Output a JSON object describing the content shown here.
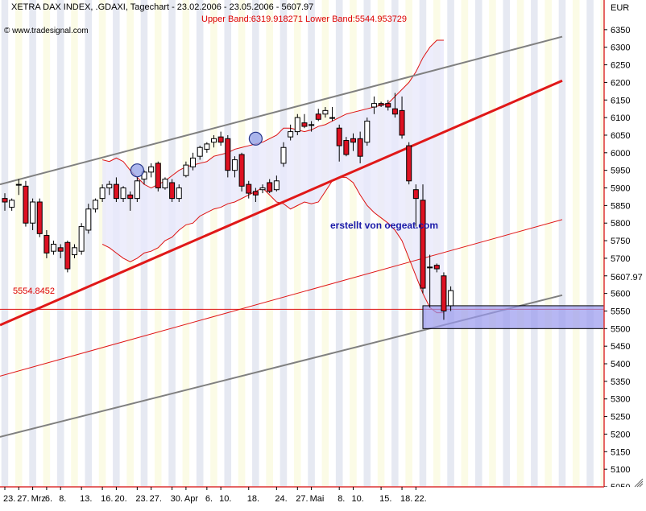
{
  "header": {
    "title": "XETRA DAX INDEX, .GDAXI, Tagechart - 23.02.2006 - 23.05.2006 - 5607.97",
    "bands": "Upper Band:6319.918271 Lower Band:5544.953729",
    "watermark": "© www.tradesignal.com",
    "annotation": "erstellt von oegeat.com",
    "currency": "EUR",
    "support_label": "5554.8452",
    "last_price_label": "5607.97"
  },
  "colors": {
    "up_candle": "#ffffff",
    "down_candle": "#dd1122",
    "trend_main": "#e01818",
    "trend_channel": "#808080",
    "bands": "#dd1111",
    "annotation": "#1a1aa8",
    "support_box": "#9999ee"
  },
  "icons": [
    "circle-marker-icon",
    "resize-grip-icon"
  ],
  "chart_data": {
    "type": "candlestick",
    "title": "XETRA DAX INDEX, .GDAXI, Tagechart - 23.02.2006 - 23.05.2006 - 5607.97",
    "ylabel": "EUR",
    "ylim": [
      5050,
      6400
    ],
    "yticks": [
      5050,
      5100,
      5150,
      5200,
      5250,
      5300,
      5350,
      5400,
      5450,
      5500,
      5550,
      5600,
      5650,
      5700,
      5750,
      5800,
      5850,
      5900,
      5950,
      6000,
      6050,
      6100,
      6150,
      6200,
      6250,
      6300,
      6350
    ],
    "x_tick_labels": [
      "23.",
      "27.",
      "Mrz",
      "6.",
      "8.",
      "13.",
      "16.",
      "20.",
      "23.",
      "27.",
      "30.",
      "Apr",
      "6.",
      "10.",
      "18.",
      "24.",
      "27.",
      "Mai",
      "8.",
      "10.",
      "15.",
      "18.",
      "22."
    ],
    "x_tick_index": [
      0,
      2,
      4,
      6,
      8,
      11,
      14,
      16,
      19,
      21,
      24,
      26,
      29,
      31,
      35,
      39,
      42,
      44,
      48,
      50,
      54,
      57,
      59
    ],
    "candles": [
      {
        "o": 5870,
        "h": 5885,
        "l": 5835,
        "c": 5860
      },
      {
        "o": 5845,
        "h": 5870,
        "l": 5835,
        "c": 5865
      },
      {
        "o": 5910,
        "h": 5925,
        "l": 5880,
        "c": 5910
      },
      {
        "o": 5905,
        "h": 5920,
        "l": 5790,
        "c": 5800
      },
      {
        "o": 5800,
        "h": 5870,
        "l": 5780,
        "c": 5860
      },
      {
        "o": 5860,
        "h": 5870,
        "l": 5760,
        "c": 5770
      },
      {
        "o": 5765,
        "h": 5780,
        "l": 5700,
        "c": 5715
      },
      {
        "o": 5720,
        "h": 5750,
        "l": 5710,
        "c": 5740
      },
      {
        "o": 5730,
        "h": 5740,
        "l": 5700,
        "c": 5720
      },
      {
        "o": 5745,
        "h": 5750,
        "l": 5660,
        "c": 5670
      },
      {
        "o": 5710,
        "h": 5740,
        "l": 5700,
        "c": 5730
      },
      {
        "o": 5720,
        "h": 5800,
        "l": 5710,
        "c": 5790
      },
      {
        "o": 5780,
        "h": 5855,
        "l": 5770,
        "c": 5840
      },
      {
        "o": 5840,
        "h": 5870,
        "l": 5830,
        "c": 5865
      },
      {
        "o": 5870,
        "h": 5910,
        "l": 5860,
        "c": 5900
      },
      {
        "o": 5900,
        "h": 5920,
        "l": 5880,
        "c": 5910
      },
      {
        "o": 5910,
        "h": 5930,
        "l": 5860,
        "c": 5870
      },
      {
        "o": 5870,
        "h": 5905,
        "l": 5860,
        "c": 5900
      },
      {
        "o": 5880,
        "h": 5890,
        "l": 5835,
        "c": 5870
      },
      {
        "o": 5870,
        "h": 5930,
        "l": 5860,
        "c": 5920
      },
      {
        "o": 5925,
        "h": 5950,
        "l": 5910,
        "c": 5945
      },
      {
        "o": 5945,
        "h": 5970,
        "l": 5930,
        "c": 5960
      },
      {
        "o": 5970,
        "h": 5975,
        "l": 5890,
        "c": 5900
      },
      {
        "o": 5900,
        "h": 5930,
        "l": 5895,
        "c": 5925
      },
      {
        "o": 5915,
        "h": 5925,
        "l": 5860,
        "c": 5870
      },
      {
        "o": 5870,
        "h": 5910,
        "l": 5860,
        "c": 5900
      },
      {
        "o": 5935,
        "h": 5975,
        "l": 5930,
        "c": 5965
      },
      {
        "o": 5960,
        "h": 6000,
        "l": 5950,
        "c": 5985
      },
      {
        "o": 5990,
        "h": 6020,
        "l": 5980,
        "c": 6015
      },
      {
        "o": 6010,
        "h": 6030,
        "l": 6000,
        "c": 6025
      },
      {
        "o": 6030,
        "h": 6050,
        "l": 6015,
        "c": 6040
      },
      {
        "o": 6045,
        "h": 6060,
        "l": 6020,
        "c": 6030
      },
      {
        "o": 6040,
        "h": 6050,
        "l": 5930,
        "c": 5950
      },
      {
        "o": 5950,
        "h": 5990,
        "l": 5930,
        "c": 5980
      },
      {
        "o": 5995,
        "h": 6000,
        "l": 5890,
        "c": 5905
      },
      {
        "o": 5910,
        "h": 5920,
        "l": 5870,
        "c": 5885
      },
      {
        "o": 5890,
        "h": 5900,
        "l": 5860,
        "c": 5880
      },
      {
        "o": 5895,
        "h": 5910,
        "l": 5885,
        "c": 5900
      },
      {
        "o": 5915,
        "h": 5925,
        "l": 5885,
        "c": 5890
      },
      {
        "o": 5895,
        "h": 5935,
        "l": 5890,
        "c": 5920
      },
      {
        "o": 5970,
        "h": 6030,
        "l": 5960,
        "c": 6015
      },
      {
        "o": 6045,
        "h": 6080,
        "l": 6035,
        "c": 6060
      },
      {
        "o": 6060,
        "h": 6110,
        "l": 6050,
        "c": 6100
      },
      {
        "o": 6085,
        "h": 6110,
        "l": 6070,
        "c": 6075
      },
      {
        "o": 6080,
        "h": 6090,
        "l": 6060,
        "c": 6080
      },
      {
        "o": 6110,
        "h": 6125,
        "l": 6090,
        "c": 6095
      },
      {
        "o": 6110,
        "h": 6130,
        "l": 6100,
        "c": 6120
      },
      {
        "o": 6100,
        "h": 6130,
        "l": 6090,
        "c": 6100
      },
      {
        "o": 6070,
        "h": 6080,
        "l": 5975,
        "c": 6020
      },
      {
        "o": 6035,
        "h": 6045,
        "l": 5990,
        "c": 5995
      },
      {
        "o": 6040,
        "h": 6055,
        "l": 6005,
        "c": 6030
      },
      {
        "o": 6040,
        "h": 6060,
        "l": 5970,
        "c": 5990
      },
      {
        "o": 6030,
        "h": 6100,
        "l": 6020,
        "c": 6090
      },
      {
        "o": 6130,
        "h": 6160,
        "l": 6110,
        "c": 6140
      },
      {
        "o": 6140,
        "h": 6145,
        "l": 6130,
        "c": 6135
      },
      {
        "o": 6140,
        "h": 6150,
        "l": 6120,
        "c": 6130
      },
      {
        "o": 6125,
        "h": 6170,
        "l": 6100,
        "c": 6110
      },
      {
        "o": 6120,
        "h": 6160,
        "l": 6040,
        "c": 6050
      },
      {
        "o": 6020,
        "h": 6030,
        "l": 5910,
        "c": 5920
      },
      {
        "o": 5895,
        "h": 5910,
        "l": 5790,
        "c": 5870
      },
      {
        "o": 5865,
        "h": 5910,
        "l": 5600,
        "c": 5615
      },
      {
        "o": 5675,
        "h": 5710,
        "l": 5560,
        "c": 5675
      },
      {
        "o": 5680,
        "h": 5685,
        "l": 5660,
        "c": 5670
      },
      {
        "o": 5650,
        "h": 5660,
        "l": 5525,
        "c": 5550
      },
      {
        "o": 5565,
        "h": 5620,
        "l": 5550,
        "c": 5608
      }
    ],
    "trendlines": [
      {
        "name": "upper-channel",
        "x": [
          0,
          80
        ],
        "y": [
          5910,
          6330
        ]
      },
      {
        "name": "main-uptrend",
        "x": [
          0,
          80
        ],
        "y": [
          5510,
          6205
        ]
      },
      {
        "name": "mid-trend",
        "x": [
          0,
          80
        ],
        "y": [
          5365,
          5810
        ]
      },
      {
        "name": "lower-channel",
        "x": [
          0,
          80
        ],
        "y": [
          5192,
          5595
        ]
      }
    ],
    "bollinger": {
      "upper": [
        5980,
        5975,
        5985,
        5975,
        5950,
        5930,
        5910,
        5900,
        5910,
        5920,
        5935,
        5950,
        5960,
        5965,
        5970,
        5975,
        5990,
        5995,
        6000,
        6010,
        6015,
        6020,
        6025,
        6030,
        6040,
        6050,
        6070,
        6070,
        6065,
        6060,
        6065,
        6075,
        6080,
        6090,
        6100,
        6110,
        6115,
        6120,
        6125,
        6130,
        6135,
        6140,
        6160,
        6180,
        6200,
        6230,
        6270,
        6300,
        6320,
        6320
      ],
      "lower": [
        5740,
        5730,
        5715,
        5700,
        5690,
        5700,
        5715,
        5720,
        5730,
        5750,
        5760,
        5780,
        5795,
        5800,
        5820,
        5830,
        5840,
        5845,
        5855,
        5860,
        5870,
        5880,
        5890,
        5900,
        5880,
        5860,
        5855,
        5840,
        5850,
        5860,
        5855,
        5860,
        5890,
        5920,
        5930,
        5930,
        5915,
        5880,
        5850,
        5830,
        5815,
        5800,
        5780,
        5750,
        5700,
        5650,
        5600,
        5560,
        5545,
        5545
      ],
      "start_index": 14
    },
    "support_zone": {
      "y_low": 5500,
      "y_high": 5565,
      "from_index": 60,
      "to_index": 68
    },
    "support_level": 5554.8452,
    "last_price": 5607.97,
    "circle_markers": [
      {
        "index": 19,
        "y": 5950
      },
      {
        "index": 36,
        "y": 6040
      }
    ]
  }
}
